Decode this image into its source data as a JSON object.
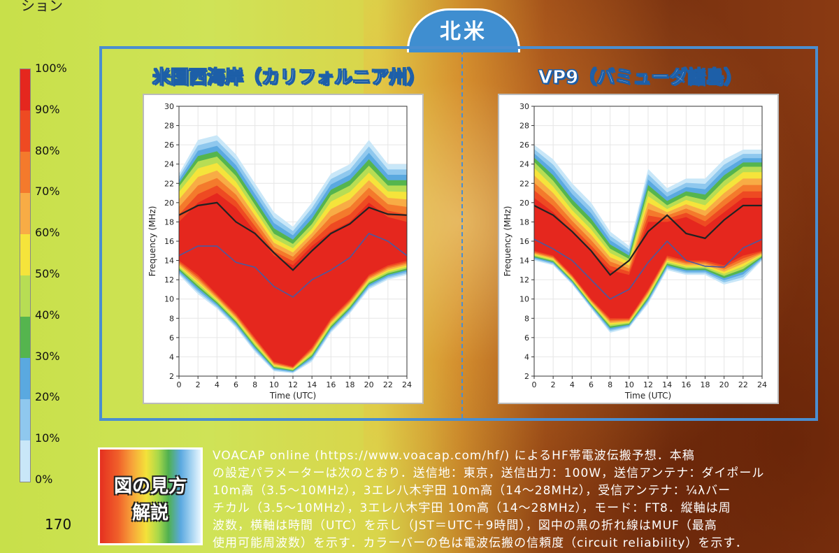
{
  "top_text": "ション",
  "region_tab": "北米",
  "description_box_title": [
    "図の見方",
    "解説"
  ],
  "page_number": "170",
  "description_lines": [
    "VOACAP online (https://www.voacap.com/hf/) によるHF帯電波伝搬予想．本稿",
    "の設定パラメーターは次のとおり．送信地：東京，送信出力：100W，送信アンテナ：ダイポール",
    "10m高（3.5～10MHz），3エレ八木宇田 10m高（14～28MHz），受信アンテナ：¼λバー",
    "チカル（3.5～10MHz），3エレ八木宇田 10m高（14～28MHz），モード：FT8．縦軸は周",
    "波数，横軸は時間（UTC）を示し（JST＝UTC＋9時間），図中の黒の折れ線はMUF（最高",
    "使用可能周波数）を示す．カラーバーの色は電波伝搬の信頼度（circuit reliability）を示す．"
  ],
  "colorbar": {
    "labels": [
      "100%",
      "90%",
      "80%",
      "70%",
      "60%",
      "50%",
      "40%",
      "30%",
      "20%",
      "10%",
      "0%"
    ],
    "colors": [
      "#e5271e",
      "#ee4a22",
      "#f47a2c",
      "#f8ac45",
      "#f5e43b",
      "#b7dd54",
      "#55b54e",
      "#5aa9e0",
      "#8fc8ee",
      "#c9e7f8",
      "#ffffff"
    ]
  },
  "chart_data": [
    {
      "type": "heatmap",
      "title": "米国西海岸（カリフォルニア州）",
      "xlabel": "Time (UTC)",
      "ylabel": "Frequency (MHz)",
      "xlim": [
        0,
        24
      ],
      "ylim": [
        2,
        30
      ],
      "xticks": [
        "0",
        "2",
        "4",
        "6",
        "8",
        "10",
        "12",
        "14",
        "16",
        "18",
        "20",
        "22",
        "24"
      ],
      "yticks": [
        "2",
        "4",
        "6",
        "8",
        "10",
        "12",
        "14",
        "16",
        "18",
        "20",
        "22",
        "24",
        "26",
        "28",
        "30"
      ],
      "grid": true,
      "x": [
        0,
        2,
        4,
        6,
        8,
        10,
        12,
        14,
        16,
        18,
        20,
        22,
        24
      ],
      "band_top_10": [
        23.0,
        26.5,
        27.0,
        25.0,
        22.0,
        19.0,
        17.5,
        20.0,
        23.0,
        24.0,
        26.5,
        24.0,
        24.0
      ],
      "band_top_50": [
        21.5,
        24.0,
        24.5,
        22.5,
        19.5,
        16.5,
        15.5,
        17.5,
        20.5,
        21.5,
        23.5,
        21.5,
        21.5
      ],
      "band_top_90": [
        18.0,
        20.0,
        21.0,
        19.5,
        17.0,
        14.5,
        13.5,
        15.5,
        17.0,
        18.0,
        20.0,
        18.5,
        18.0
      ],
      "band_bottom_90": [
        14.0,
        12.5,
        10.5,
        8.5,
        6.0,
        3.5,
        3.0,
        5.0,
        8.0,
        10.0,
        12.5,
        13.5,
        14.0
      ],
      "band_bottom_10": [
        12.5,
        10.5,
        9.0,
        7.0,
        4.5,
        2.5,
        2.3,
        3.5,
        6.5,
        8.5,
        11.0,
        12.0,
        12.5
      ],
      "series": [
        {
          "name": "MUF",
          "color": "#222222",
          "values": [
            18.7,
            19.7,
            20.0,
            18.0,
            16.8,
            14.8,
            13.0,
            15.0,
            16.8,
            17.8,
            19.5,
            18.8,
            18.7
          ]
        },
        {
          "color": "#4a5aa0",
          "values": [
            14.5,
            15.5,
            15.5,
            13.8,
            13.3,
            11.3,
            10.2,
            12.0,
            13.0,
            14.3,
            16.8,
            16.0,
            14.5
          ]
        }
      ]
    },
    {
      "type": "heatmap",
      "title": "VP9（バミューダ諸島）",
      "xlabel": "Time (UTC)",
      "ylabel": "Frequency (MHz)",
      "xlim": [
        0,
        24
      ],
      "ylim": [
        2,
        30
      ],
      "xticks": [
        "0",
        "2",
        "4",
        "6",
        "8",
        "10",
        "12",
        "14",
        "16",
        "18",
        "20",
        "22",
        "24"
      ],
      "yticks": [
        "2",
        "4",
        "6",
        "8",
        "10",
        "12",
        "14",
        "16",
        "18",
        "20",
        "22",
        "24",
        "26",
        "28",
        "30"
      ],
      "grid": true,
      "x": [
        0,
        2,
        4,
        6,
        8,
        10,
        12,
        14,
        16,
        18,
        20,
        22,
        24
      ],
      "band_top_10": [
        26.0,
        24.5,
        22.0,
        20.0,
        17.0,
        15.5,
        23.5,
        21.5,
        22.5,
        22.5,
        24.5,
        25.5,
        25.5
      ],
      "band_top_50": [
        24.0,
        22.0,
        19.5,
        17.5,
        15.0,
        14.0,
        21.0,
        19.5,
        20.5,
        20.0,
        22.0,
        23.5,
        23.5
      ],
      "band_top_90": [
        20.5,
        19.0,
        17.0,
        15.0,
        13.0,
        12.5,
        18.0,
        18.0,
        18.5,
        17.5,
        19.0,
        20.5,
        20.5
      ],
      "band_bottom_90": [
        15.0,
        14.5,
        12.5,
        10.0,
        8.0,
        8.0,
        11.0,
        14.5,
        14.0,
        14.0,
        13.5,
        14.5,
        15.0
      ],
      "band_bottom_10": [
        14.0,
        13.5,
        11.5,
        9.0,
        6.5,
        7.0,
        9.5,
        13.0,
        12.5,
        12.5,
        11.5,
        12.0,
        14.0
      ],
      "series": [
        {
          "name": "MUF",
          "color": "#222222",
          "values": [
            19.7,
            18.7,
            17.0,
            15.0,
            12.5,
            14.0,
            17.0,
            18.7,
            16.8,
            16.3,
            18.2,
            19.7,
            19.7
          ]
        },
        {
          "color": "#4a5aa0",
          "values": [
            16.2,
            15.2,
            14.0,
            12.0,
            10.0,
            11.0,
            13.8,
            16.0,
            14.0,
            13.4,
            13.3,
            15.3,
            16.2
          ]
        }
      ]
    }
  ]
}
